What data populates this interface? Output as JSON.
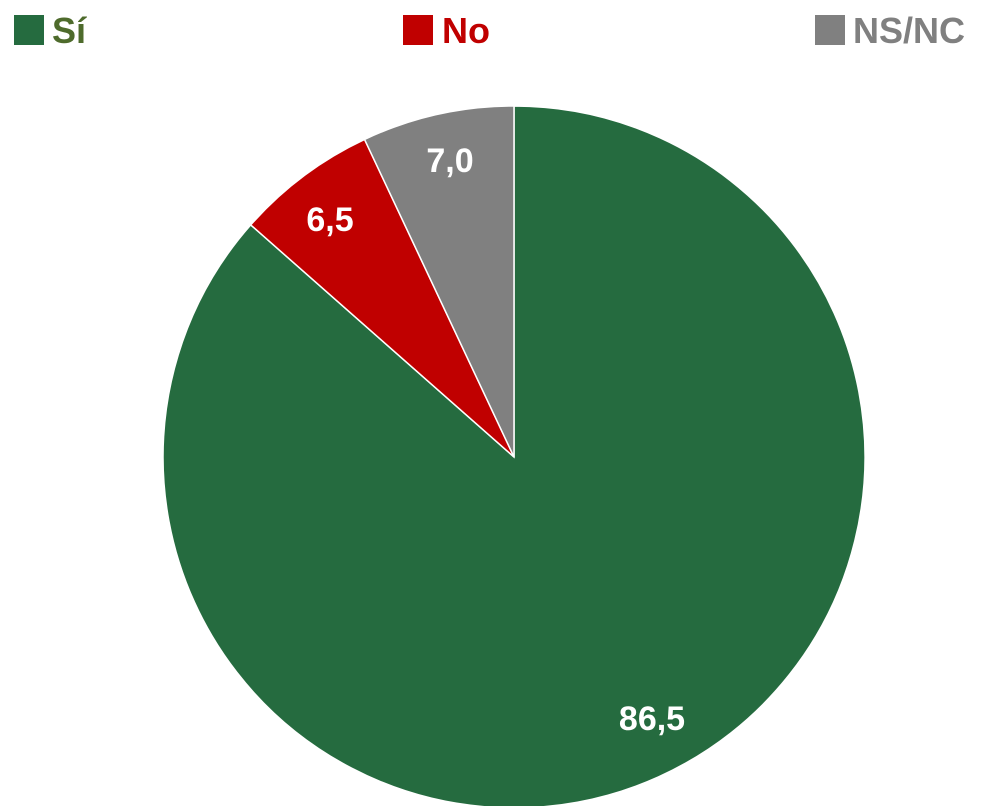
{
  "chart_data": {
    "type": "pie",
    "title": "",
    "legend_position": "top",
    "slices": [
      {
        "label": "Sí",
        "value": 86.5,
        "value_label": "86,5",
        "color": "#256B3F",
        "legend_text_color": "#4E6B2C"
      },
      {
        "label": "No",
        "value": 6.5,
        "value_label": "6,5",
        "color": "#C00000",
        "legend_text_color": "#C00000"
      },
      {
        "label": "NS/NC",
        "value": 7.0,
        "value_label": "7,0",
        "color": "#808080",
        "legend_text_color": "#808080"
      }
    ],
    "start_angle_deg": 0,
    "direction": "clockwise"
  }
}
